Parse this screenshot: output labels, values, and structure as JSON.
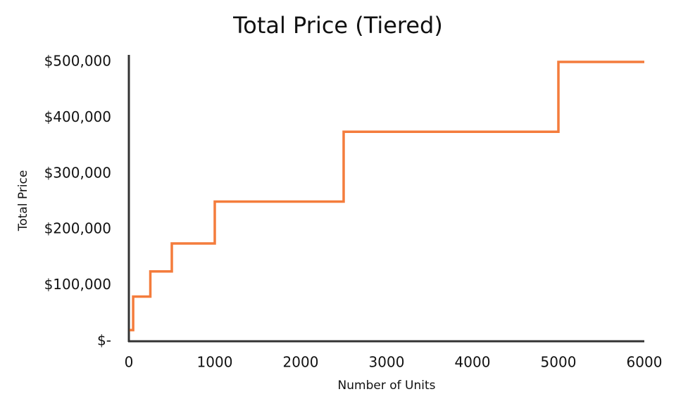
{
  "chart_data": {
    "type": "line",
    "title": "Total Price (Tiered)",
    "x_label": "Number of Units",
    "y_label": "Total Price",
    "x": [
      10,
      50,
      50,
      250,
      250,
      500,
      500,
      1000,
      1000,
      2500,
      2500,
      5000,
      5000,
      6000
    ],
    "series": [
      {
        "name": "Total Price",
        "color": "#f47c3c",
        "values": [
          20000,
          20000,
          80000,
          80000,
          125000,
          125000,
          175000,
          175000,
          250000,
          250000,
          375000,
          375000,
          500000,
          500000
        ]
      }
    ],
    "xlim": [
      0,
      6000
    ],
    "xticks": [
      0,
      1000,
      2000,
      3000,
      4000,
      5000,
      6000
    ],
    "ylim": [
      0,
      500000
    ],
    "yticks": [
      {
        "value": 0,
        "label": "$-"
      },
      {
        "value": 100000,
        "label": "$100,000"
      },
      {
        "value": 200000,
        "label": "$200,000"
      },
      {
        "value": 300000,
        "label": "$300,000"
      },
      {
        "value": 400000,
        "label": "$400,000"
      },
      {
        "value": 500000,
        "label": "$500,000"
      }
    ],
    "grid": false
  }
}
